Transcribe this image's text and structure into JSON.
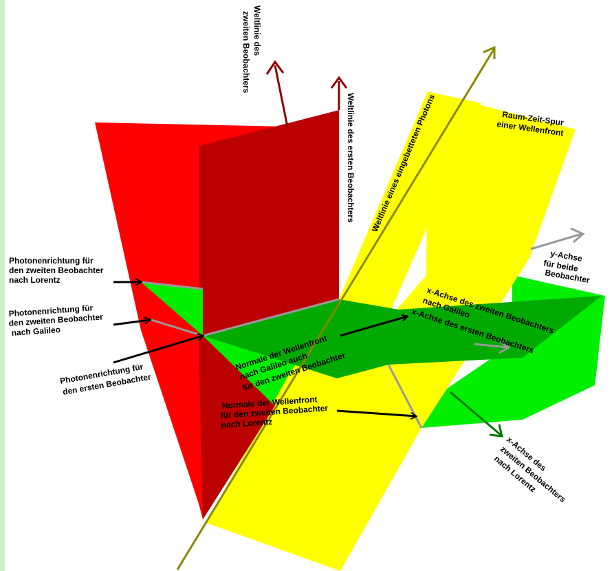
{
  "colors": {
    "red": "#ff0000",
    "dark_red": "#bb0000",
    "red_arrow": "#8b0000",
    "green": "#00ee00",
    "dark_green": "#00aa00",
    "yellow": "#ffff00",
    "olive": "#888800",
    "gray": "#999999",
    "green_arrow": "#007700"
  },
  "labels": {
    "weltlinie_zweiter_1": "Weltlinie des",
    "weltlinie_zweiter_2": "zweiten Beobachters",
    "weltlinie_erster": "Weltlinie des ersten Beobachters",
    "weltlinie_photon": "Weltlinie eines eingebetteten Photons",
    "raum_zeit_1": "Raum-Zeit-Spur",
    "raum_zeit_2": "einer Wellenfront",
    "y_achse_1": "y-Achse",
    "y_achse_2": "für beide",
    "y_achse_3": "Beobachter",
    "x_achse_zweiter_galileo_1": "x-Achse des zweiten Beobachters",
    "x_achse_zweiter_galileo_2": "nach Galileo",
    "x_achse_erster": "x-Achse des ersten Beobachters",
    "photon_zweiter_lorentz_1": "Photonenrichtung für",
    "photon_zweiter_lorentz_2": "den zweiten Beobachter",
    "photon_zweiter_lorentz_3": "nach Lorentz",
    "photon_zweiter_galileo_1": "Photonenrichtung für",
    "photon_zweiter_galileo_2": "den zweiten Beobachter",
    "photon_zweiter_galileo_3": "nach Galileo",
    "photon_erster_1": "Photonenrichtung für",
    "photon_erster_2": "den ersten Beobachter",
    "normale_galileo_1": "Normale der Wellenfront",
    "normale_galileo_2": "nach Galileo auch",
    "normale_galileo_3": "für den zweiten Beobachter",
    "normale_lorentz_1": "Normale der Wellenfront",
    "normale_lorentz_2": "für den zweiten Beobachter",
    "normale_lorentz_3": "nach Lorentz",
    "x_achse_lorentz_1": "x-Achse des",
    "x_achse_lorentz_2": "zweiten Beobachters",
    "x_achse_lorentz_3": "nach Lorentz"
  }
}
